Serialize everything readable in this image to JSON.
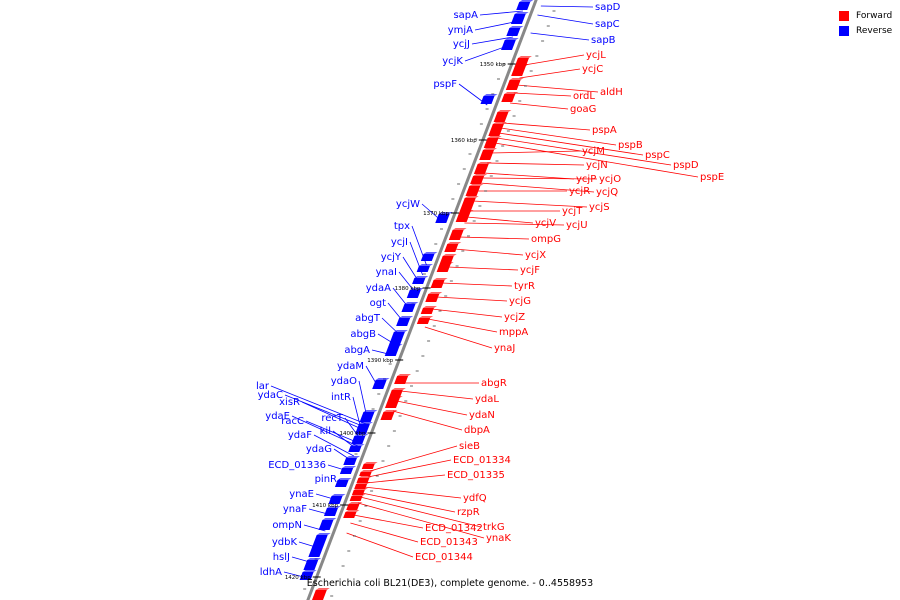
{
  "colors": {
    "forward": "#ff0000",
    "reverse": "#0000ff",
    "backbone": "#888888"
  },
  "legend": [
    {
      "key": "forward",
      "label": "Forward"
    },
    {
      "key": "reverse",
      "label": "Reverse"
    }
  ],
  "caption": "Escherichia coli BL21(DE3), complete genome. - 0..4558953",
  "ticks": [
    "1350 kbp",
    "1360 kbp",
    "1370 kbp",
    "1380 kbp",
    "1390 kbp",
    "1400 kbp",
    "1410 kbp",
    "1420 kbp"
  ],
  "reverse_genes": [
    "sapD",
    "sapC",
    "sapB",
    "sapA",
    "ymjA",
    "ycjJ",
    "ycjK",
    "pspF",
    "ycjW",
    "tpx",
    "ycjI",
    "ycjY",
    "ynaI",
    "ydaA",
    "ogt",
    "abgT",
    "abgB",
    "abgA",
    "ydaM",
    "ydaO",
    "lar",
    "ydaC",
    "xisR",
    "intR",
    "recT",
    "racC",
    "ydaE",
    "kil",
    "ydaF",
    "ydaG",
    "ECD_01336",
    "pinR",
    "ynaE",
    "ynaF",
    "ompN",
    "ydbK",
    "hslJ",
    "ldhA"
  ],
  "forward_genes": [
    "ycjL",
    "ycjC",
    "aldH",
    "ordL",
    "goaG",
    "pspA",
    "pspB",
    "pspC",
    "pspD",
    "pspE",
    "ycjM",
    "ycjN",
    "ycjP",
    "ycjO",
    "ycjQ",
    "ycjR",
    "ycjS",
    "ycjT",
    "ycjV",
    "ycjU",
    "ompG",
    "ycjX",
    "ycjF",
    "tyrR",
    "ycjG",
    "ycjZ",
    "mppA",
    "ynaJ",
    "abgR",
    "ydaL",
    "ydaN",
    "dbpA",
    "sieB",
    "ECD_01334",
    "ECD_01335",
    "ydfQ",
    "rzpR",
    "trkG",
    "ynaK",
    "ECD_01342",
    "ECD_01343",
    "ECD_01344"
  ]
}
